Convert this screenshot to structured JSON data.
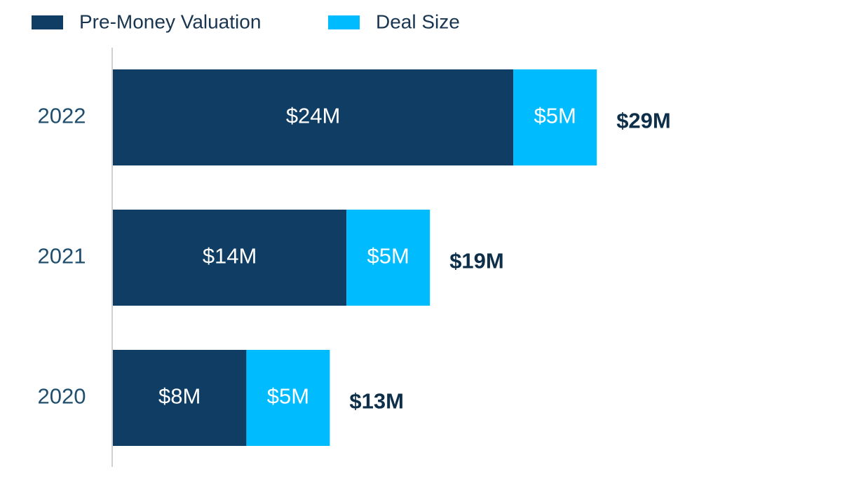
{
  "chart_data": {
    "type": "stacked-bar-horizontal",
    "categories": [
      "2022",
      "2021",
      "2020"
    ],
    "series": [
      {
        "name": "Pre-Money Valuation",
        "color": "#0f3d63",
        "values": [
          24,
          14,
          8
        ],
        "value_labels": [
          "$24M",
          "$14M",
          "$8M"
        ]
      },
      {
        "name": "Deal Size",
        "color": "#00bcff",
        "values": [
          5,
          5,
          5
        ],
        "value_labels": [
          "$5M",
          "$5M",
          "$5M"
        ]
      }
    ],
    "totals": {
      "values": [
        29,
        19,
        13
      ],
      "value_labels": [
        "$29M",
        "$19M",
        "$13M"
      ]
    },
    "legend": "top-left"
  }
}
